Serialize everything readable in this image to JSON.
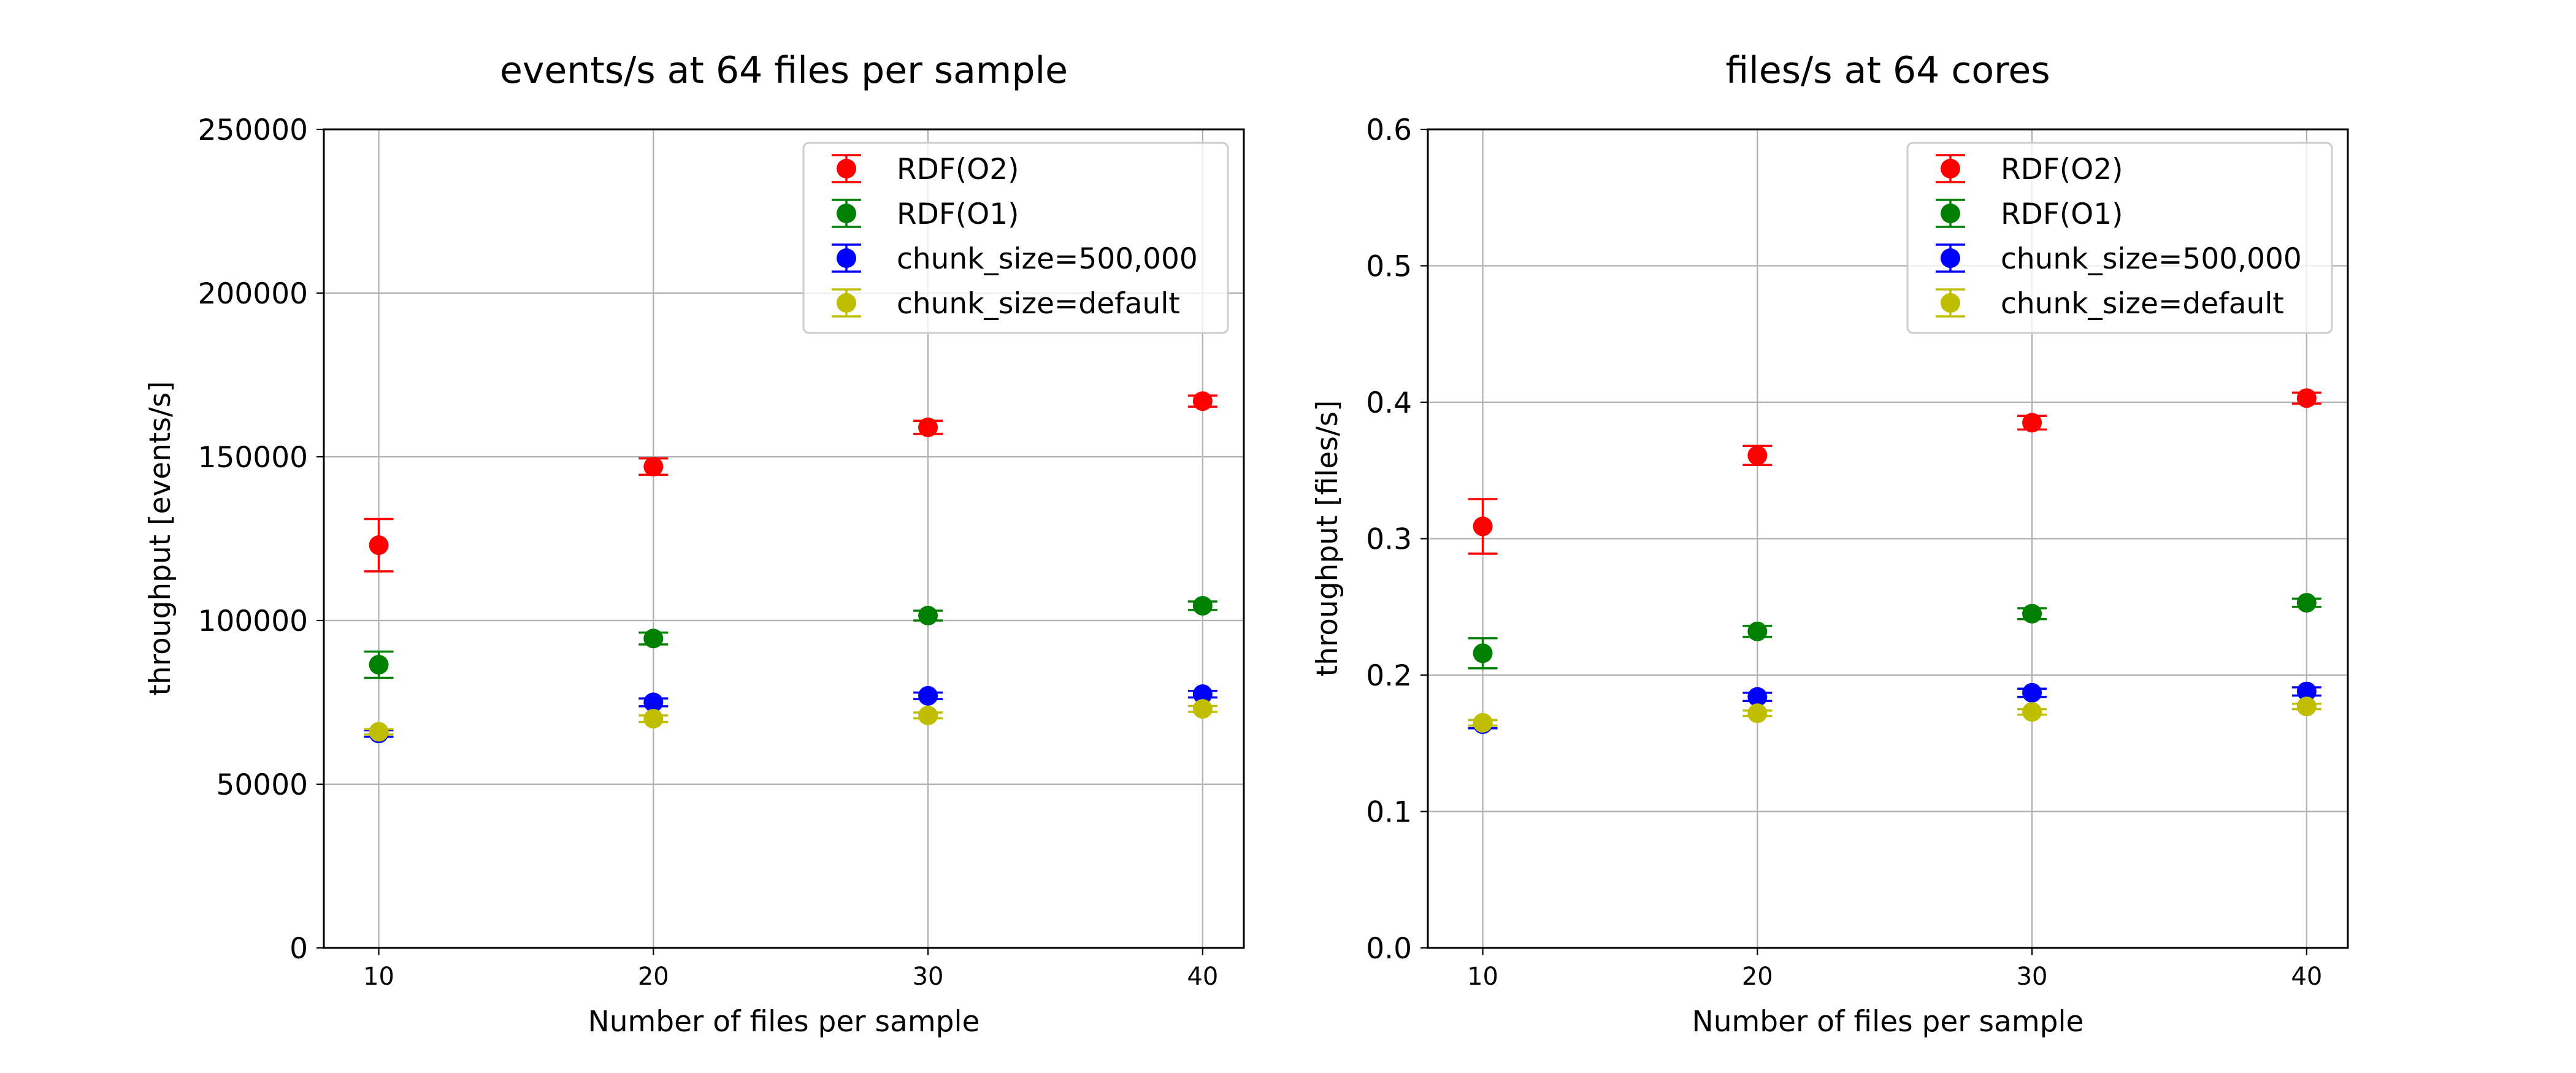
{
  "chart_data": [
    {
      "type": "scatter",
      "title": "events/s at 64 files per sample",
      "xlabel": "Number of files per sample",
      "ylabel": "throughput [events/s]",
      "x": [
        10,
        20,
        30,
        40
      ],
      "xticks": [
        "10",
        "20",
        "30",
        "40"
      ],
      "xlim": [
        8,
        41.5
      ],
      "ylim": [
        0,
        250000
      ],
      "yticks": [
        "0",
        "50000",
        "100000",
        "150000",
        "200000",
        "250000"
      ],
      "grid": true,
      "legend_position": "upper-right",
      "series": [
        {
          "name": "RDF(O2)",
          "color": "#ff0000",
          "values": [
            123000,
            147000,
            159000,
            167000
          ],
          "errors": [
            8000,
            2500,
            2000,
            1700
          ]
        },
        {
          "name": "RDF(O1)",
          "color": "#008000",
          "values": [
            86500,
            94500,
            101500,
            104500
          ],
          "errors": [
            4000,
            1800,
            1500,
            1300
          ]
        },
        {
          "name": "chunk_size=500,000",
          "color": "#0000ff",
          "values": [
            65500,
            75000,
            77000,
            77500
          ],
          "errors": [
            1000,
            1200,
            1000,
            1000
          ]
        },
        {
          "name": "chunk_size=default",
          "color": "#bfbf00",
          "values": [
            66000,
            70000,
            71000,
            73000
          ],
          "errors": [
            800,
            1000,
            900,
            900
          ]
        }
      ]
    },
    {
      "type": "scatter",
      "title": "files/s at 64 cores",
      "xlabel": "Number of files per sample",
      "ylabel": "throughput [files/s]",
      "x": [
        10,
        20,
        30,
        40
      ],
      "xticks": [
        "10",
        "20",
        "30",
        "40"
      ],
      "xlim": [
        8,
        41.5
      ],
      "ylim": [
        0,
        0.6
      ],
      "yticks": [
        "0.0",
        "0.1",
        "0.2",
        "0.3",
        "0.4",
        "0.5",
        "0.6"
      ],
      "grid": true,
      "legend_position": "upper-right",
      "series": [
        {
          "name": "RDF(O2)",
          "color": "#ff0000",
          "values": [
            0.309,
            0.361,
            0.385,
            0.403
          ],
          "errors": [
            0.02,
            0.007,
            0.005,
            0.004
          ]
        },
        {
          "name": "RDF(O1)",
          "color": "#008000",
          "values": [
            0.216,
            0.232,
            0.245,
            0.253
          ],
          "errors": [
            0.011,
            0.004,
            0.004,
            0.003
          ]
        },
        {
          "name": "chunk_size=500,000",
          "color": "#0000ff",
          "values": [
            0.164,
            0.184,
            0.187,
            0.188
          ],
          "errors": [
            0.003,
            0.003,
            0.003,
            0.003
          ]
        },
        {
          "name": "chunk_size=default",
          "color": "#bfbf00",
          "values": [
            0.165,
            0.172,
            0.173,
            0.177
          ],
          "errors": [
            0.002,
            0.002,
            0.002,
            0.002
          ]
        }
      ]
    }
  ]
}
